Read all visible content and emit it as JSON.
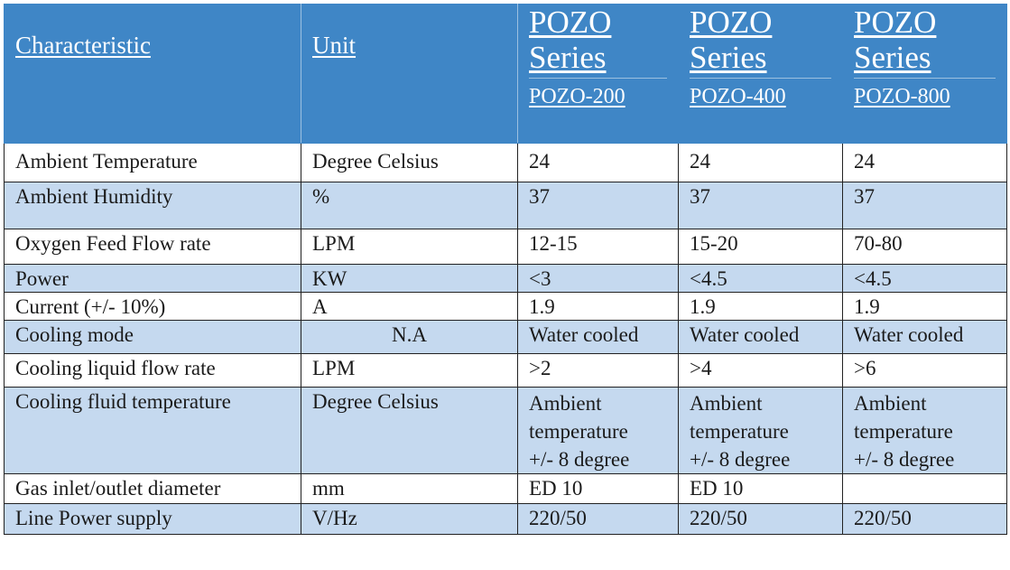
{
  "header": {
    "characteristic": "Characteristic",
    "unit": "Unit",
    "series": [
      {
        "title_line1": "POZO",
        "title_line2": "Series",
        "model": "POZO-200"
      },
      {
        "title_line1": "POZO",
        "title_line2": "Series",
        "model": "POZO-400"
      },
      {
        "title_line1": "POZO",
        "title_line2": "Series",
        "model": "POZO-800"
      }
    ]
  },
  "rows": [
    {
      "characteristic": "Ambient Temperature",
      "unit": "Degree Celsius",
      "values": [
        "24",
        "24",
        "24"
      ]
    },
    {
      "characteristic": "Ambient Humidity",
      "unit": "%",
      "values": [
        "37",
        "37",
        "37"
      ]
    },
    {
      "characteristic": "Oxygen Feed Flow rate",
      "unit": "LPM",
      "values": [
        "12-15",
        "15-20",
        "70-80"
      ]
    },
    {
      "characteristic": "Power",
      "unit": "KW",
      "values": [
        "<3",
        "<4.5",
        "<4.5"
      ]
    },
    {
      "characteristic": "Current  (+/- 10%)",
      "unit": "A",
      "values": [
        "1.9",
        "1.9",
        "1.9"
      ]
    },
    {
      "characteristic": "Cooling  mode",
      "unit": "N.A",
      "values": [
        "Water cooled",
        "Water cooled",
        "Water cooled"
      ]
    },
    {
      "characteristic": "Cooling liquid flow rate",
      "unit": "LPM",
      "values": [
        ">2",
        ">4",
        ">6"
      ]
    },
    {
      "characteristic": "Cooling fluid temperature",
      "unit": "Degree Celsius",
      "values": [
        [
          "Ambient",
          "temperature",
          "+/- 8 degree"
        ],
        [
          "Ambient",
          "temperature",
          "+/- 8 degree"
        ],
        [
          "Ambient",
          "temperature",
          "+/- 8 degree"
        ]
      ]
    },
    {
      "characteristic": "Gas inlet/outlet diameter",
      "unit": "mm",
      "values": [
        "ED 10",
        "ED 10",
        ""
      ]
    },
    {
      "characteristic": "Line Power supply",
      "unit": "V/Hz",
      "values": [
        "220/50",
        "220/50",
        "220/50"
      ]
    }
  ],
  "colors": {
    "header_bg": "#3f86c6",
    "row_blue": "#c5d9ef",
    "row_white": "#ffffff"
  }
}
